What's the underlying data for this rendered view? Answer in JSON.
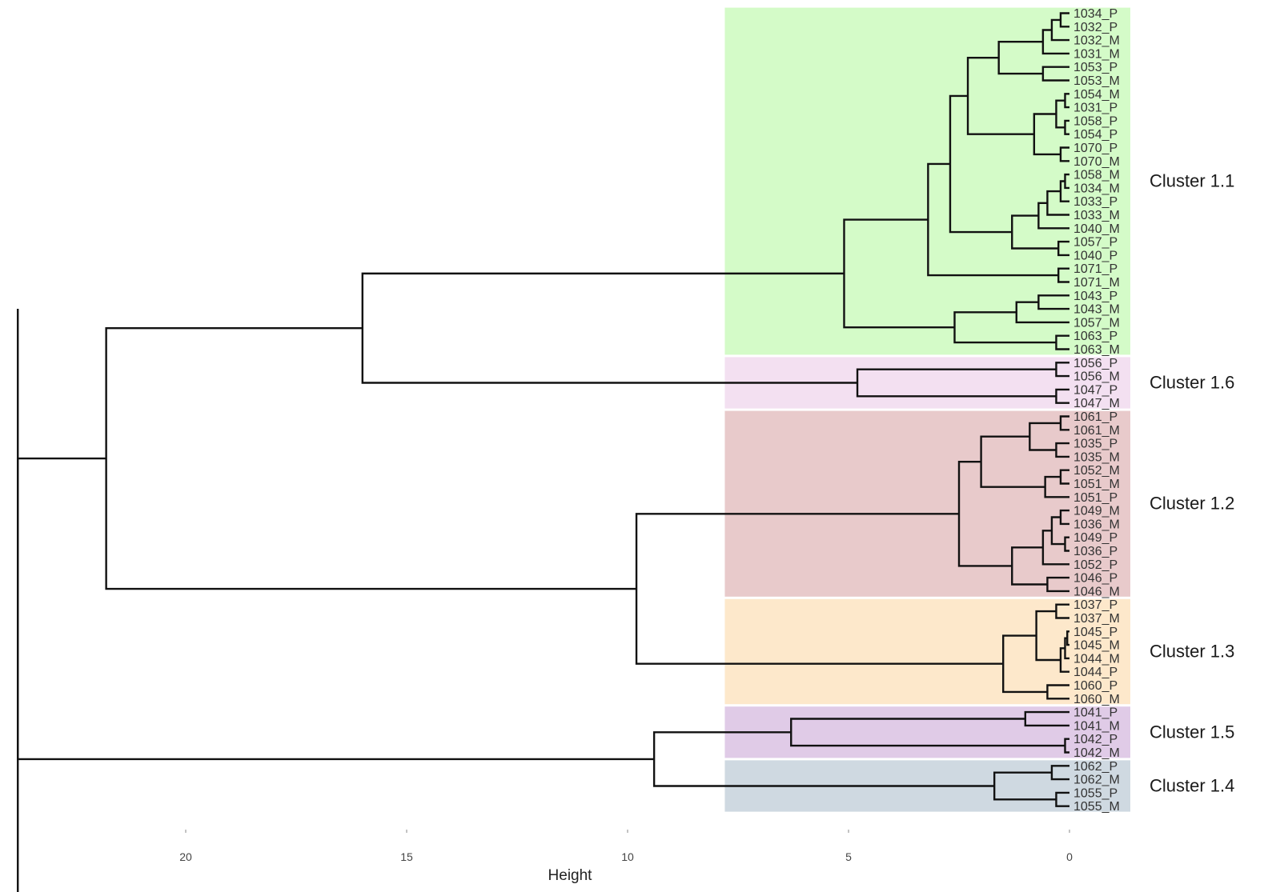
{
  "chart_data": {
    "type": "dendrogram",
    "title": "",
    "xlabel": "Height",
    "ylabel": "",
    "xlim": [
      24,
      -1.5
    ],
    "xticks": [
      20,
      15,
      10,
      5,
      0
    ],
    "grid": false,
    "legend": "none",
    "leaves": [
      "1034_P",
      "1032_P",
      "1032_M",
      "1031_M",
      "1053_P",
      "1053_M",
      "1054_M",
      "1031_P",
      "1058_P",
      "1054_P",
      "1070_P",
      "1070_M",
      "1058_M",
      "1034_M",
      "1033_P",
      "1033_M",
      "1040_M",
      "1057_P",
      "1040_P",
      "1071_P",
      "1071_M",
      "1043_P",
      "1043_M",
      "1057_M",
      "1063_P",
      "1063_M",
      "1056_P",
      "1056_M",
      "1047_P",
      "1047_M",
      "1061_P",
      "1061_M",
      "1035_P",
      "1035_M",
      "1052_M",
      "1051_M",
      "1051_P",
      "1049_M",
      "1036_M",
      "1049_P",
      "1036_P",
      "1052_P",
      "1046_P",
      "1046_M",
      "1037_P",
      "1037_M",
      "1045_P",
      "1045_M",
      "1044_M",
      "1044_P",
      "1060_P",
      "1060_M",
      "1041_P",
      "1041_M",
      "1042_P",
      "1042_M",
      "1062_P",
      "1062_M",
      "1055_P",
      "1055_M"
    ],
    "merges": [
      {
        "a": "L0",
        "b": "L1",
        "h": 0.2
      },
      {
        "a": "N0",
        "b": "L2",
        "h": 0.4
      },
      {
        "a": "N1",
        "b": "L3",
        "h": 0.6
      },
      {
        "a": "L4",
        "b": "L5",
        "h": 0.6
      },
      {
        "a": "N2",
        "b": "N3",
        "h": 1.6
      },
      {
        "a": "L6",
        "b": "L7",
        "h": 0.1
      },
      {
        "a": "L8",
        "b": "L9",
        "h": 0.1
      },
      {
        "a": "N5",
        "b": "N6",
        "h": 0.3
      },
      {
        "a": "L10",
        "b": "L11",
        "h": 0.2
      },
      {
        "a": "N7",
        "b": "N8",
        "h": 0.8
      },
      {
        "a": "N4",
        "b": "N9",
        "h": 2.3
      },
      {
        "a": "L12",
        "b": "L13",
        "h": 0.1
      },
      {
        "a": "N11",
        "b": "L14",
        "h": 0.2
      },
      {
        "a": "N12",
        "b": "L15",
        "h": 0.5
      },
      {
        "a": "N13",
        "b": "L16",
        "h": 0.7
      },
      {
        "a": "L17",
        "b": "L18",
        "h": 0.25
      },
      {
        "a": "N14",
        "b": "N15",
        "h": 1.3
      },
      {
        "a": "N10",
        "b": "N16",
        "h": 2.7
      },
      {
        "a": "L19",
        "b": "L20",
        "h": 0.25
      },
      {
        "a": "N17",
        "b": "N18",
        "h": 3.2
      },
      {
        "a": "L21",
        "b": "L22",
        "h": 0.7
      },
      {
        "a": "N20",
        "b": "L23",
        "h": 1.2
      },
      {
        "a": "L24",
        "b": "L25",
        "h": 0.3
      },
      {
        "a": "N21",
        "b": "N22",
        "h": 2.6
      },
      {
        "a": "N19",
        "b": "N23",
        "h": 5.1
      },
      {
        "a": "L26",
        "b": "L27",
        "h": 0.3
      },
      {
        "a": "L28",
        "b": "L29",
        "h": 0.3
      },
      {
        "a": "N25",
        "b": "N26",
        "h": 4.8
      },
      {
        "a": "N24",
        "b": "N27",
        "h": 16.0
      },
      {
        "a": "L30",
        "b": "L31",
        "h": 0.2
      },
      {
        "a": "L32",
        "b": "L33",
        "h": 0.3
      },
      {
        "a": "N29",
        "b": "N30",
        "h": 0.9
      },
      {
        "a": "L34",
        "b": "L35",
        "h": 0.2
      },
      {
        "a": "N32",
        "b": "L36",
        "h": 0.55
      },
      {
        "a": "N31",
        "b": "N33",
        "h": 2.0
      },
      {
        "a": "L37",
        "b": "L38",
        "h": 0.2
      },
      {
        "a": "L39",
        "b": "L40",
        "h": 0.1
      },
      {
        "a": "N35",
        "b": "N36",
        "h": 0.4
      },
      {
        "a": "N37",
        "b": "L41",
        "h": 0.6
      },
      {
        "a": "L42",
        "b": "L43",
        "h": 0.5
      },
      {
        "a": "N38",
        "b": "N39",
        "h": 1.3
      },
      {
        "a": "N34",
        "b": "N40",
        "h": 2.5
      },
      {
        "a": "L44",
        "b": "L45",
        "h": 0.3
      },
      {
        "a": "L46",
        "b": "L47",
        "h": 0.05
      },
      {
        "a": "N43",
        "b": "L48",
        "h": 0.1
      },
      {
        "a": "N44",
        "b": "L49",
        "h": 0.2
      },
      {
        "a": "N42",
        "b": "N45",
        "h": 0.75
      },
      {
        "a": "L50",
        "b": "L51",
        "h": 0.5
      },
      {
        "a": "N46",
        "b": "N47",
        "h": 1.5
      },
      {
        "a": "N41",
        "b": "N48",
        "h": 9.8
      },
      {
        "a": "N28",
        "b": "N49",
        "h": 21.8
      },
      {
        "a": "L52",
        "b": "L53",
        "h": 1.0
      },
      {
        "a": "L54",
        "b": "L55",
        "h": 0.1
      },
      {
        "a": "N51",
        "b": "N52",
        "h": 6.3
      },
      {
        "a": "L56",
        "b": "L57",
        "h": 0.4
      },
      {
        "a": "L58",
        "b": "L59",
        "h": 0.3
      },
      {
        "a": "N54",
        "b": "N55",
        "h": 1.7
      },
      {
        "a": "N53",
        "b": "N56",
        "h": 9.4
      },
      {
        "a": "N50",
        "b": "N57",
        "h": 23.8
      }
    ],
    "clusters": [
      {
        "label": "Cluster 1.1",
        "first": 0,
        "last": 25,
        "color": "#d4fbc8"
      },
      {
        "label": "Cluster 1.6",
        "first": 26,
        "last": 29,
        "color": "#f3e0f1"
      },
      {
        "label": "Cluster 1.2",
        "first": 30,
        "last": 43,
        "color": "#e8cacb"
      },
      {
        "label": "Cluster 1.3",
        "first": 44,
        "last": 51,
        "color": "#fde8cb"
      },
      {
        "label": "Cluster 1.5",
        "first": 52,
        "last": 55,
        "color": "#e0cbe7"
      },
      {
        "label": "Cluster 1.4",
        "first": 56,
        "last": 59,
        "color": "#cfd9e1"
      }
    ],
    "cluster_band_start": 7.8,
    "line_color": "#111111"
  }
}
